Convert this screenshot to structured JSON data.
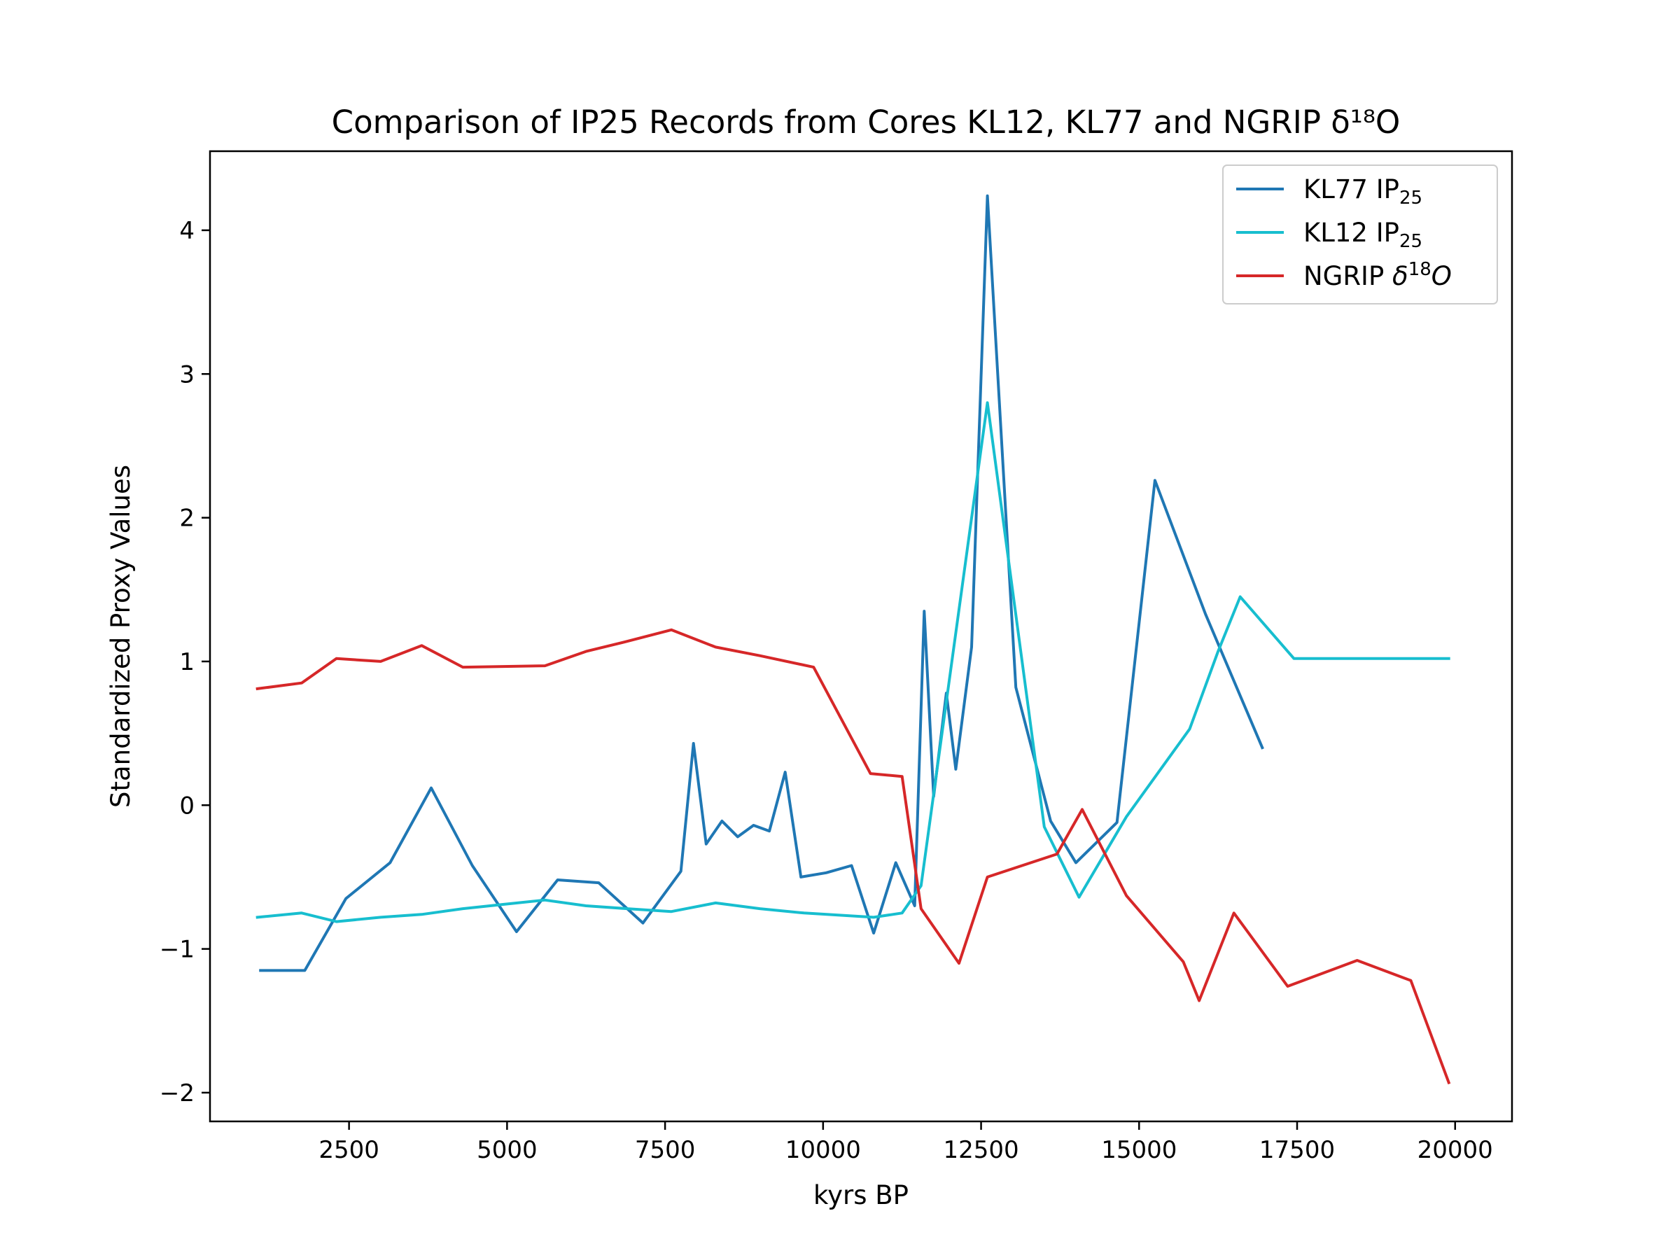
{
  "chart_data": {
    "type": "line",
    "title": "Comparison of IP25 Records from Cores KL12, KL77 and NGRIP δ¹⁸O",
    "xlabel": "kyrs BP",
    "ylabel": "Standardized Proxy Values",
    "xlim": [
      300,
      20900
    ],
    "ylim": [
      -2.2,
      4.55
    ],
    "xticks": [
      2500,
      5000,
      7500,
      10000,
      12500,
      15000,
      17500,
      20000
    ],
    "xtick_labels": [
      "2500",
      "5000",
      "7500",
      "10000",
      "12500",
      "15000",
      "17500",
      "20000"
    ],
    "yticks": [
      -2,
      -1,
      0,
      1,
      2,
      3,
      4
    ],
    "ytick_labels": [
      "−2",
      "−1",
      "0",
      "1",
      "2",
      "3",
      "4"
    ],
    "grid": false,
    "legend_position": "top-right",
    "series": [
      {
        "name": "KL77 IP25",
        "name_main": "KL77 IP",
        "name_sub": "25",
        "color": "#1f77b4",
        "points": [
          [
            1100,
            -1.15
          ],
          [
            1800,
            -1.15
          ],
          [
            2450,
            -0.65
          ],
          [
            3150,
            -0.4
          ],
          [
            3800,
            0.12
          ],
          [
            4450,
            -0.42
          ],
          [
            5150,
            -0.88
          ],
          [
            5800,
            -0.52
          ],
          [
            6450,
            -0.54
          ],
          [
            7150,
            -0.82
          ],
          [
            7750,
            -0.46
          ],
          [
            7950,
            0.43
          ],
          [
            8150,
            -0.27
          ],
          [
            8400,
            -0.11
          ],
          [
            8650,
            -0.22
          ],
          [
            8900,
            -0.14
          ],
          [
            9150,
            -0.18
          ],
          [
            9400,
            0.23
          ],
          [
            9650,
            -0.5
          ],
          [
            10050,
            -0.47
          ],
          [
            10450,
            -0.42
          ],
          [
            10800,
            -0.89
          ],
          [
            11150,
            -0.4
          ],
          [
            11450,
            -0.7
          ],
          [
            11600,
            1.35
          ],
          [
            11750,
            0.06
          ],
          [
            11950,
            0.78
          ],
          [
            12100,
            0.25
          ],
          [
            12350,
            1.1
          ],
          [
            12600,
            4.24
          ],
          [
            13050,
            0.82
          ],
          [
            13600,
            -0.11
          ],
          [
            14000,
            -0.4
          ],
          [
            14650,
            -0.12
          ],
          [
            15250,
            2.26
          ],
          [
            16050,
            1.33
          ],
          [
            16950,
            0.4
          ]
        ]
      },
      {
        "name": "KL12 IP25",
        "name_main": "KL12 IP",
        "name_sub": "25",
        "color": "#17becf",
        "points": [
          [
            1050,
            -0.78
          ],
          [
            1750,
            -0.75
          ],
          [
            2300,
            -0.81
          ],
          [
            3000,
            -0.78
          ],
          [
            3650,
            -0.76
          ],
          [
            4300,
            -0.72
          ],
          [
            4950,
            -0.69
          ],
          [
            5600,
            -0.66
          ],
          [
            6250,
            -0.7
          ],
          [
            6900,
            -0.72
          ],
          [
            7600,
            -0.74
          ],
          [
            8300,
            -0.68
          ],
          [
            9000,
            -0.72
          ],
          [
            9700,
            -0.75
          ],
          [
            10800,
            -0.78
          ],
          [
            11250,
            -0.75
          ],
          [
            11550,
            -0.56
          ],
          [
            12600,
            2.8
          ],
          [
            13500,
            -0.15
          ],
          [
            14050,
            -0.64
          ],
          [
            14800,
            -0.08
          ],
          [
            15800,
            0.53
          ],
          [
            16250,
            1.07
          ],
          [
            16600,
            1.45
          ],
          [
            17450,
            1.02
          ],
          [
            18700,
            1.02
          ],
          [
            19900,
            1.02
          ]
        ]
      },
      {
        "name": "NGRIP δ18O",
        "name_main": "NGRIP ",
        "name_delta": "δ",
        "name_sup": "18",
        "name_o": "O",
        "color": "#d62728",
        "points": [
          [
            1050,
            0.81
          ],
          [
            1750,
            0.85
          ],
          [
            2300,
            1.02
          ],
          [
            3000,
            1.0
          ],
          [
            3650,
            1.11
          ],
          [
            4300,
            0.96
          ],
          [
            5600,
            0.97
          ],
          [
            6250,
            1.07
          ],
          [
            6900,
            1.14
          ],
          [
            7600,
            1.22
          ],
          [
            8300,
            1.1
          ],
          [
            9000,
            1.04
          ],
          [
            9850,
            0.96
          ],
          [
            10750,
            0.22
          ],
          [
            11250,
            0.2
          ],
          [
            11550,
            -0.72
          ],
          [
            12150,
            -1.1
          ],
          [
            12600,
            -0.5
          ],
          [
            13700,
            -0.34
          ],
          [
            14100,
            -0.03
          ],
          [
            14800,
            -0.63
          ],
          [
            15700,
            -1.09
          ],
          [
            15950,
            -1.36
          ],
          [
            16500,
            -0.75
          ],
          [
            17350,
            -1.26
          ],
          [
            18450,
            -1.08
          ],
          [
            19300,
            -1.22
          ],
          [
            19900,
            -1.93
          ]
        ]
      }
    ]
  }
}
